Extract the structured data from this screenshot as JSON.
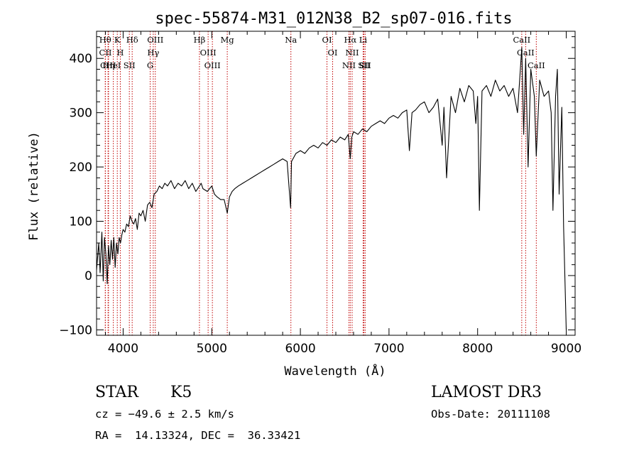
{
  "chart_data": {
    "type": "line",
    "title": "spec-55874-M31_012N38_B2_sp07-016.fits",
    "xlabel": "Wavelength (Å)",
    "ylabel": "Flux (relative)",
    "xlim": [
      3700,
      9100
    ],
    "ylim": [
      -110,
      450
    ],
    "xticks": [
      4000,
      5000,
      6000,
      7000,
      8000,
      9000
    ],
    "yticks": [
      -100,
      0,
      100,
      200,
      300,
      400
    ],
    "x_minor_step": 200,
    "y_minor_step": 20,
    "series": [
      {
        "name": "spectrum",
        "x": [
          3700,
          3725,
          3740,
          3760,
          3775,
          3790,
          3805,
          3820,
          3835,
          3850,
          3865,
          3880,
          3895,
          3910,
          3925,
          3940,
          3955,
          3970,
          3985,
          4000,
          4020,
          4040,
          4060,
          4080,
          4100,
          4120,
          4140,
          4160,
          4180,
          4200,
          4225,
          4250,
          4275,
          4300,
          4325,
          4350,
          4380,
          4410,
          4440,
          4470,
          4500,
          4540,
          4580,
          4620,
          4660,
          4700,
          4740,
          4780,
          4820,
          4861,
          4880,
          4900,
          4950,
          5000,
          5030,
          5060,
          5100,
          5140,
          5175,
          5200,
          5230,
          5260,
          5300,
          5350,
          5400,
          5450,
          5500,
          5550,
          5600,
          5650,
          5700,
          5750,
          5800,
          5850,
          5890,
          5900,
          5950,
          6000,
          6050,
          6100,
          6150,
          6200,
          6250,
          6300,
          6350,
          6400,
          6450,
          6500,
          6540,
          6563,
          6580,
          6600,
          6650,
          6700,
          6750,
          6800,
          6850,
          6900,
          6950,
          7000,
          7050,
          7100,
          7150,
          7200,
          7230,
          7260,
          7300,
          7350,
          7400,
          7450,
          7500,
          7550,
          7600,
          7620,
          7650,
          7700,
          7750,
          7800,
          7850,
          7900,
          7950,
          7980,
          8000,
          8020,
          8050,
          8100,
          8150,
          8200,
          8250,
          8300,
          8350,
          8400,
          8450,
          8498,
          8520,
          8542,
          8570,
          8600,
          8640,
          8662,
          8700,
          8750,
          8800,
          8830,
          8850,
          8880,
          8900,
          8920,
          8950,
          8970,
          9000
        ],
        "y": [
          10,
          60,
          5,
          80,
          -10,
          70,
          40,
          -15,
          55,
          20,
          65,
          30,
          70,
          15,
          60,
          40,
          70,
          60,
          75,
          85,
          80,
          95,
          90,
          110,
          100,
          95,
          105,
          85,
          115,
          110,
          120,
          100,
          130,
          135,
          125,
          150,
          155,
          165,
          160,
          170,
          165,
          175,
          160,
          170,
          165,
          175,
          160,
          170,
          155,
          165,
          170,
          160,
          155,
          165,
          150,
          145,
          140,
          140,
          115,
          145,
          155,
          160,
          165,
          170,
          175,
          180,
          185,
          190,
          195,
          200,
          205,
          210,
          215,
          210,
          125,
          210,
          225,
          230,
          225,
          235,
          240,
          235,
          245,
          240,
          250,
          245,
          255,
          250,
          260,
          215,
          255,
          265,
          260,
          270,
          265,
          275,
          280,
          285,
          280,
          290,
          295,
          290,
          300,
          305,
          230,
          300,
          305,
          315,
          320,
          300,
          310,
          325,
          240,
          310,
          180,
          330,
          300,
          345,
          320,
          350,
          340,
          280,
          330,
          120,
          340,
          350,
          330,
          360,
          340,
          350,
          330,
          345,
          300,
          420,
          260,
          400,
          200,
          380,
          330,
          220,
          360,
          330,
          340,
          300,
          120,
          330,
          380,
          150,
          310,
          90,
          -100
        ]
      }
    ],
    "line_markers": [
      {
        "label": "Hθ",
        "x": 3798
      },
      {
        "label": "CII",
        "x": 3800
      },
      {
        "label": "CIII",
        "x": 3830
      },
      {
        "label": "K",
        "x": 3934
      },
      {
        "label": "HeI",
        "x": 3889
      },
      {
        "label": "Hη",
        "x": 3835
      },
      {
        "label": "H",
        "x": 3968
      },
      {
        "label": "SII",
        "x": 4070
      },
      {
        "label": "Hδ",
        "x": 4102
      },
      {
        "label": "OIII",
        "x": 4363
      },
      {
        "label": "Hγ",
        "x": 4340
      },
      {
        "label": "G",
        "x": 4305
      },
      {
        "label": "Hβ",
        "x": 4861
      },
      {
        "label": "OIII",
        "x": 4959
      },
      {
        "label": "OIII",
        "x": 5007
      },
      {
        "label": "Mg",
        "x": 5175
      },
      {
        "label": "Na",
        "x": 5893
      },
      {
        "label": "OI",
        "x": 6300
      },
      {
        "label": "OI",
        "x": 6364
      },
      {
        "label": "Hα",
        "x": 6563
      },
      {
        "label": "NII",
        "x": 6548
      },
      {
        "label": "NII",
        "x": 6584
      },
      {
        "label": "SII",
        "x": 6717
      },
      {
        "label": "Li",
        "x": 6708
      },
      {
        "label": "SII",
        "x": 6731
      },
      {
        "label": "CaII",
        "x": 8498
      },
      {
        "label": "CaII",
        "x": 8542
      },
      {
        "label": "CaII",
        "x": 8662
      }
    ]
  },
  "info": {
    "class_label": "STAR",
    "subclass": "K5",
    "cz": "cz = −49.6 ± 2.5 km/s",
    "coords": "RA =  14.13324, DEC =  36.33421",
    "survey": "LAMOST DR3",
    "obs_date": "Obs-Date: 20111108"
  },
  "colors": {
    "axis": "#000000",
    "spectrum": "#000000",
    "marker": "#c00000"
  }
}
